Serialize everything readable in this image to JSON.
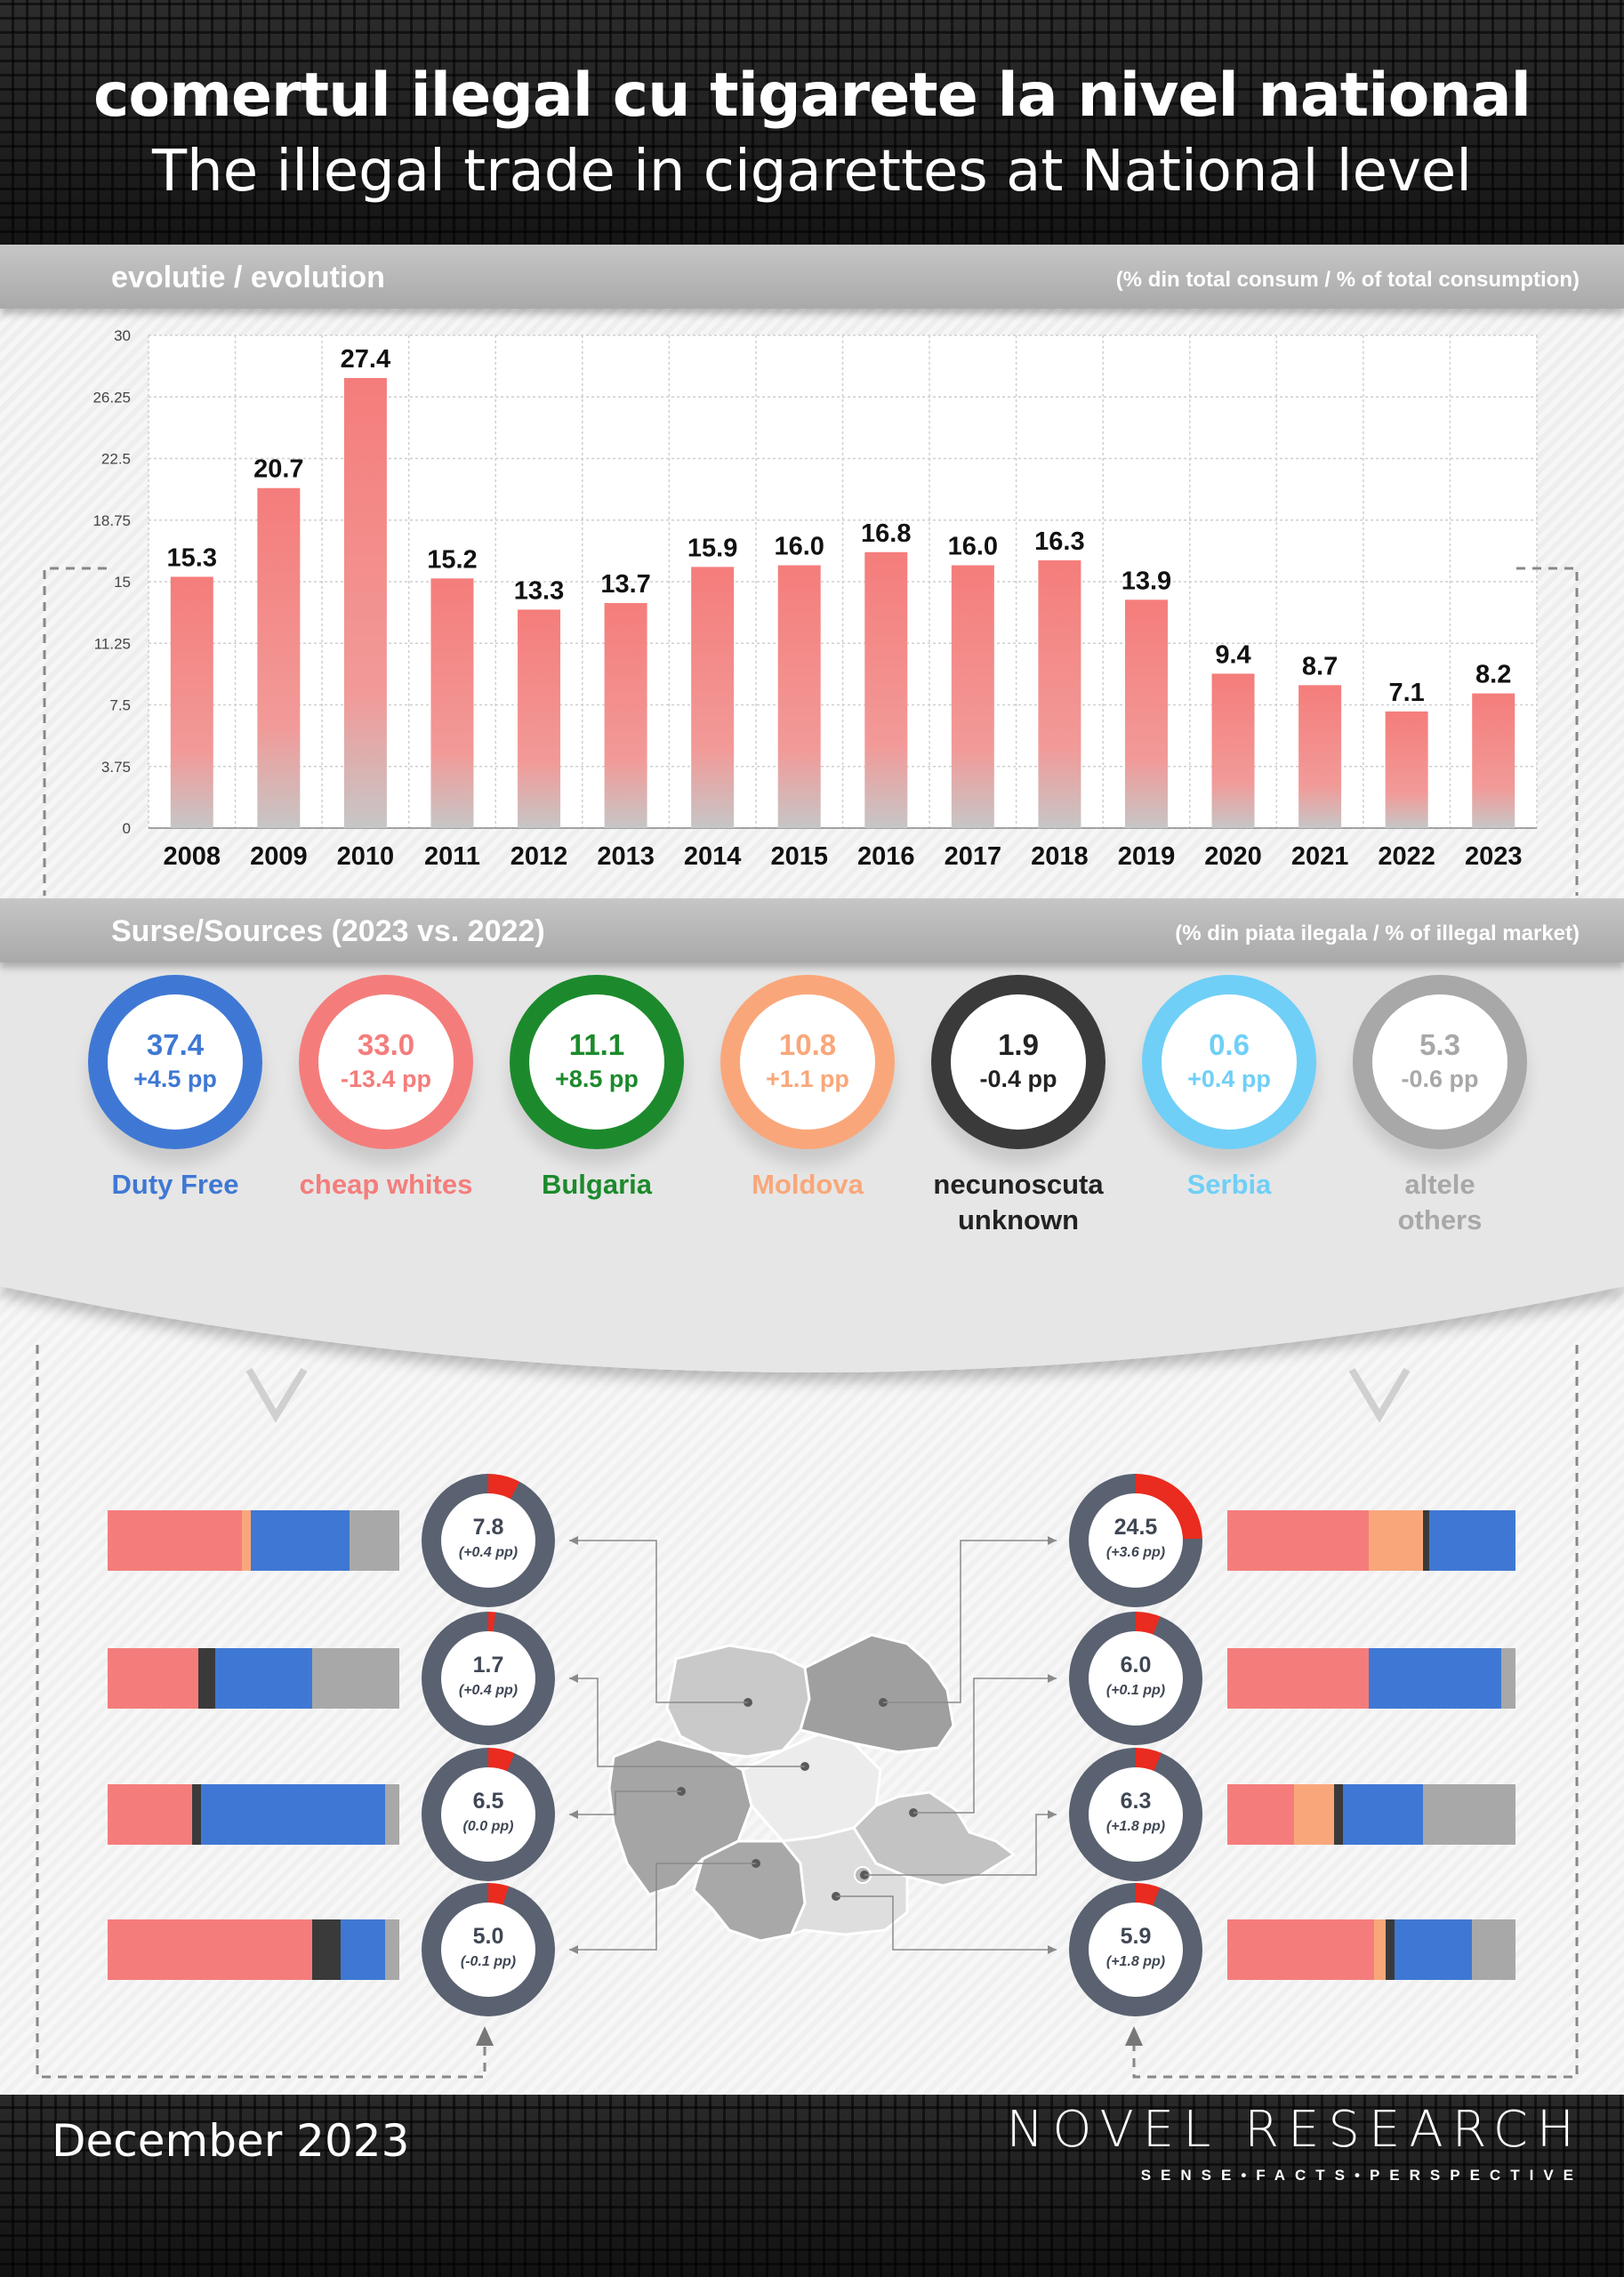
{
  "header": {
    "title_ro": "comertul ilegal cu tigarete la nivel national",
    "title_en": "The illegal trade in cigarettes at National level"
  },
  "evolution": {
    "label": "evolutie / evolution",
    "unit_note": "(% din total consum / % of total consumption)"
  },
  "chart_data": {
    "type": "bar",
    "categories": [
      "2008",
      "2009",
      "2010",
      "2011",
      "2012",
      "2013",
      "2014",
      "2015",
      "2016",
      "2017",
      "2018",
      "2019",
      "2020",
      "2021",
      "2022",
      "2023"
    ],
    "values": [
      15.3,
      20.7,
      27.4,
      15.2,
      13.3,
      13.7,
      15.9,
      16.0,
      16.8,
      16.0,
      16.3,
      13.9,
      9.4,
      8.7,
      7.1,
      8.2
    ],
    "value_labels": [
      "15.3",
      "20.7",
      "27.4",
      "15.2",
      "13.3",
      "13.7",
      "15.9",
      "16.0",
      "16.8",
      "16.0",
      "16.3",
      "13.9",
      "9.4",
      "8.7",
      "7.1",
      "8.2"
    ],
    "yticks": [
      "0",
      "3.75",
      "7.5",
      "11.25",
      "15",
      "18.75",
      "22.5",
      "26.25",
      "30"
    ],
    "ylim": [
      0,
      30
    ],
    "grid": true,
    "bar_color": "#f47d7b"
  },
  "sources": {
    "label": "Surse/Sources (2023 vs. 2022)",
    "unit_note": "(% din piata ilegala / % of illegal market)",
    "items": [
      {
        "value": "37.4",
        "change": "+4.5 pp",
        "name": "Duty Free",
        "name2": "",
        "color": "#3f78d4"
      },
      {
        "value": "33.0",
        "change": "-13.4 pp",
        "name": "cheap whites",
        "name2": "",
        "color": "#f47d7b"
      },
      {
        "value": "11.1",
        "change": "+8.5 pp",
        "name": "Bulgaria",
        "name2": "",
        "color": "#1c8a2c"
      },
      {
        "value": "10.8",
        "change": "+1.1 pp",
        "name": "Moldova",
        "name2": "",
        "color": "#f9a77a"
      },
      {
        "value": "1.9",
        "change": "-0.4 pp",
        "name": "necunoscuta",
        "name2": "unknown",
        "color": "#3a3a3a"
      },
      {
        "value": "0.6",
        "change": "+0.4 pp",
        "name": "Serbia",
        "name2": "",
        "color": "#6fcff7"
      },
      {
        "value": "5.3",
        "change": "-0.6 pp",
        "name": "altele",
        "name2": "others",
        "color": "#a8a8a8"
      }
    ]
  },
  "regions": {
    "left": [
      {
        "value": "7.8",
        "change": "(+0.4 pp)",
        "share": 7.8,
        "stack": [
          [
            46,
            "#f47d7b"
          ],
          [
            3,
            "#f9a77a"
          ],
          [
            34,
            "#3f78d4"
          ],
          [
            17,
            "#a8a8a8"
          ]
        ]
      },
      {
        "value": "1.7",
        "change": "(+0.4 pp)",
        "share": 1.7,
        "stack": [
          [
            31,
            "#f47d7b"
          ],
          [
            6,
            "#3a3a3a"
          ],
          [
            33,
            "#3f78d4"
          ],
          [
            30,
            "#a8a8a8"
          ]
        ]
      },
      {
        "value": "6.5",
        "change": "(0.0 pp)",
        "share": 6.5,
        "stack": [
          [
            29,
            "#f47d7b"
          ],
          [
            3,
            "#3a3a3a"
          ],
          [
            63,
            "#3f78d4"
          ],
          [
            5,
            "#a8a8a8"
          ]
        ]
      },
      {
        "value": "5.0",
        "change": "(-0.1 pp)",
        "share": 5.0,
        "stack": [
          [
            70,
            "#f47d7b"
          ],
          [
            10,
            "#3a3a3a"
          ],
          [
            15,
            "#3f78d4"
          ],
          [
            5,
            "#a8a8a8"
          ]
        ]
      }
    ],
    "right": [
      {
        "value": "24.5",
        "change": "(+3.6 pp)",
        "share": 24.5,
        "stack": [
          [
            49,
            "#f47d7b"
          ],
          [
            19,
            "#f9a77a"
          ],
          [
            2,
            "#3a3a3a"
          ],
          [
            30,
            "#3f78d4"
          ]
        ]
      },
      {
        "value": "6.0",
        "change": "(+0.1 pp)",
        "share": 6.0,
        "stack": [
          [
            49,
            "#f47d7b"
          ],
          [
            46,
            "#3f78d4"
          ],
          [
            5,
            "#a8a8a8"
          ]
        ]
      },
      {
        "value": "6.3",
        "change": "(+1.8 pp)",
        "share": 6.3,
        "stack": [
          [
            23,
            "#f47d7b"
          ],
          [
            14,
            "#f9a77a"
          ],
          [
            3,
            "#3a3a3a"
          ],
          [
            28,
            "#3f78d4"
          ],
          [
            32,
            "#a8a8a8"
          ]
        ]
      },
      {
        "value": "5.9",
        "change": "(+1.8 pp)",
        "share": 5.9,
        "stack": [
          [
            51,
            "#f47d7b"
          ],
          [
            4,
            "#f9a77a"
          ],
          [
            3,
            "#3a3a3a"
          ],
          [
            27,
            "#3f78d4"
          ],
          [
            15,
            "#a8a8a8"
          ]
        ]
      }
    ]
  },
  "footer": {
    "date": "December 2023",
    "brand": "NOVEL RESEARCH",
    "tagline": "SENSE•FACTS•PERSPECTIVE"
  }
}
